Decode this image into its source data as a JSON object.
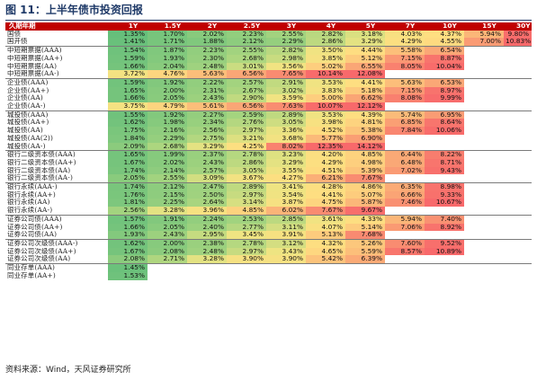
{
  "title": "图 11：上半年债市投资回报",
  "source": "资料来源：Wind，天风证券研究所",
  "header": [
    "久期年期",
    "1Y",
    "1.5Y",
    "2Y",
    "2.5Y",
    "3Y",
    "4Y",
    "5Y",
    "7Y",
    "10Y",
    "15Y",
    "30Y"
  ],
  "groups": [
    {
      "rows": [
        {
          "name": "国债",
          "values": [
            "1.35%",
            "1.70%",
            "2.02%",
            "2.23%",
            "2.55%",
            "2.82%",
            "3.18%",
            "4.03%",
            "4.37%",
            "5.94%",
            "9.80%"
          ]
        },
        {
          "name": "国开债",
          "values": [
            "1.41%",
            "1.71%",
            "1.88%",
            "2.12%",
            "2.29%",
            "2.86%",
            "3.29%",
            "4.29%",
            "4.55%",
            "7.00%",
            "10.83%"
          ]
        }
      ]
    },
    {
      "rows": [
        {
          "name": "中短期票据(AAA)",
          "values": [
            "1.54%",
            "1.87%",
            "2.23%",
            "2.55%",
            "2.82%",
            "3.50%",
            "4.44%",
            "5.58%",
            "6.54%",
            "",
            ""
          ]
        },
        {
          "name": "中短期票据(AA+)",
          "values": [
            "1.59%",
            "1.93%",
            "2.30%",
            "2.68%",
            "2.98%",
            "3.85%",
            "5.12%",
            "7.15%",
            "8.87%",
            "",
            ""
          ]
        },
        {
          "name": "中短期票据(AA)",
          "values": [
            "1.66%",
            "2.04%",
            "2.48%",
            "3.01%",
            "3.56%",
            "5.02%",
            "6.55%",
            "8.05%",
            "10.04%",
            "",
            ""
          ]
        },
        {
          "name": "中短期票据(AA-)",
          "values": [
            "3.72%",
            "4.76%",
            "5.63%",
            "6.56%",
            "7.65%",
            "10.14%",
            "12.08%",
            "",
            "",
            "",
            ""
          ]
        }
      ]
    },
    {
      "rows": [
        {
          "name": "企业债(AAA)",
          "values": [
            "1.59%",
            "1.92%",
            "2.22%",
            "2.57%",
            "2.91%",
            "3.53%",
            "4.41%",
            "5.63%",
            "6.53%",
            "",
            ""
          ]
        },
        {
          "name": "企业债(AA+)",
          "values": [
            "1.65%",
            "2.00%",
            "2.31%",
            "2.67%",
            "3.02%",
            "3.83%",
            "5.18%",
            "7.15%",
            "8.97%",
            "",
            ""
          ]
        },
        {
          "name": "企业债(AA)",
          "values": [
            "1.66%",
            "2.05%",
            "2.43%",
            "2.90%",
            "3.59%",
            "5.00%",
            "6.62%",
            "8.08%",
            "9.99%",
            "",
            ""
          ]
        },
        {
          "name": "企业债(AA-)",
          "values": [
            "3.75%",
            "4.79%",
            "5.61%",
            "6.56%",
            "7.63%",
            "10.07%",
            "12.12%",
            "",
            "",
            "",
            ""
          ]
        }
      ]
    },
    {
      "rows": [
        {
          "name": "城投债(AAA)",
          "values": [
            "1.55%",
            "1.92%",
            "2.27%",
            "2.59%",
            "2.89%",
            "3.53%",
            "4.39%",
            "5.74%",
            "6.95%",
            "",
            ""
          ]
        },
        {
          "name": "城投债(AA+)",
          "values": [
            "1.62%",
            "1.98%",
            "2.34%",
            "2.76%",
            "3.05%",
            "3.98%",
            "4.81%",
            "6.85%",
            "8.64%",
            "",
            ""
          ]
        },
        {
          "name": "城投债(AA)",
          "values": [
            "1.75%",
            "2.16%",
            "2.56%",
            "2.97%",
            "3.36%",
            "4.52%",
            "5.38%",
            "7.84%",
            "10.06%",
            "",
            ""
          ]
        },
        {
          "name": "城投债(AA(2))",
          "values": [
            "1.84%",
            "2.29%",
            "2.75%",
            "3.21%",
            "3.68%",
            "5.77%",
            "6.90%",
            "",
            "",
            "",
            ""
          ]
        },
        {
          "name": "城投债(AA-)",
          "values": [
            "2.09%",
            "2.68%",
            "3.29%",
            "4.25%",
            "8.02%",
            "12.35%",
            "14.12%",
            "",
            "",
            "",
            ""
          ]
        }
      ]
    },
    {
      "rows": [
        {
          "name": "银行二级资本债(AAA)",
          "values": [
            "1.65%",
            "1.99%",
            "2.37%",
            "2.78%",
            "3.23%",
            "4.20%",
            "4.85%",
            "6.44%",
            "8.22%",
            "",
            ""
          ]
        },
        {
          "name": "银行二级资本债(AA+)",
          "values": [
            "1.67%",
            "2.02%",
            "2.43%",
            "2.86%",
            "3.29%",
            "4.29%",
            "4.98%",
            "6.48%",
            "8.71%",
            "",
            ""
          ]
        },
        {
          "name": "银行二级资本债(AA)",
          "values": [
            "1.74%",
            "2.14%",
            "2.57%",
            "3.05%",
            "3.55%",
            "4.51%",
            "5.39%",
            "7.02%",
            "9.43%",
            "",
            ""
          ]
        },
        {
          "name": "银行二级资本债(AA-)",
          "values": [
            "2.05%",
            "2.55%",
            "3.09%",
            "3.67%",
            "4.27%",
            "6.21%",
            "7.67%",
            "",
            "",
            "",
            ""
          ]
        }
      ]
    },
    {
      "rows": [
        {
          "name": "银行永续(AAA-)",
          "values": [
            "1.74%",
            "2.12%",
            "2.47%",
            "2.89%",
            "3.41%",
            "4.28%",
            "4.86%",
            "6.35%",
            "8.98%",
            "",
            ""
          ]
        },
        {
          "name": "银行永续(AA+)",
          "values": [
            "1.76%",
            "2.15%",
            "2.50%",
            "2.97%",
            "3.54%",
            "4.41%",
            "5.07%",
            "6.66%",
            "9.33%",
            "",
            ""
          ]
        },
        {
          "name": "银行永续(AA)",
          "values": [
            "1.81%",
            "2.25%",
            "2.64%",
            "3.14%",
            "3.87%",
            "4.75%",
            "5.87%",
            "7.46%",
            "10.67%",
            "",
            ""
          ]
        },
        {
          "name": "银行永续(AA-)",
          "values": [
            "2.56%",
            "3.28%",
            "3.96%",
            "4.85%",
            "6.02%",
            "7.67%",
            "9.67%",
            "",
            "",
            "",
            ""
          ]
        }
      ]
    },
    {
      "rows": [
        {
          "name": "证券公司债(AAA)",
          "values": [
            "1.57%",
            "1.91%",
            "2.24%",
            "2.53%",
            "2.85%",
            "3.61%",
            "4.33%",
            "5.94%",
            "7.40%",
            "",
            ""
          ]
        },
        {
          "name": "证券公司债(AA+)",
          "values": [
            "1.66%",
            "2.05%",
            "2.40%",
            "2.77%",
            "3.11%",
            "4.07%",
            "5.14%",
            "7.06%",
            "8.92%",
            "",
            ""
          ]
        },
        {
          "name": "证券公司债(AA)",
          "values": [
            "1.93%",
            "2.43%",
            "2.95%",
            "3.45%",
            "3.91%",
            "5.13%",
            "7.68%",
            "",
            "",
            "",
            ""
          ]
        }
      ]
    },
    {
      "rows": [
        {
          "name": "证券公司次级债(AAA-)",
          "values": [
            "1.62%",
            "2.00%",
            "2.38%",
            "2.78%",
            "3.12%",
            "4.32%",
            "5.26%",
            "7.60%",
            "9.52%",
            "",
            ""
          ]
        },
        {
          "name": "证券公司次级债(AA+)",
          "values": [
            "1.67%",
            "2.08%",
            "2.48%",
            "2.97%",
            "3.43%",
            "4.65%",
            "5.59%",
            "8.57%",
            "10.89%",
            "",
            ""
          ]
        },
        {
          "name": "证券公司次级债(AA)",
          "values": [
            "2.08%",
            "2.71%",
            "3.28%",
            "3.90%",
            "3.90%",
            "5.42%",
            "6.39%",
            "",
            "",
            "",
            ""
          ]
        }
      ]
    },
    {
      "rows": [
        {
          "name": "同业存单(AAA)",
          "values": [
            "1.45%",
            "",
            "",
            "",
            "",
            "",
            "",
            "",
            "",
            "",
            ""
          ]
        },
        {
          "name": "同业存单(AA+)",
          "values": [
            "1.53%",
            "",
            "",
            "",
            "",
            "",
            "",
            "",
            "",
            "",
            ""
          ]
        }
      ]
    }
  ]
}
